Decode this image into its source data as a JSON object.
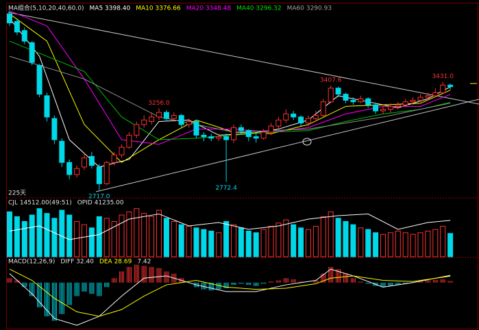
{
  "chart_data": [
    {
      "type": "candlestick",
      "header": [
        {
          "text": "MA组合(5,10,20,40,60,0)",
          "color": "#e0e0e0"
        },
        {
          "text": "MA5 3398.40",
          "color": "#ffffff"
        },
        {
          "text": "MA10 3376.66",
          "color": "#ffff00"
        },
        {
          "text": "MA20 3348.48",
          "color": "#ff00ff"
        },
        {
          "text": "MA40 3296.32",
          "color": "#00e000"
        },
        {
          "text": "MA60 3290.93",
          "color": "#a0a0a0"
        }
      ],
      "span_label": "225天",
      "up_color": "#ff3232",
      "down_color": "#00d8e8",
      "open": [
        3880,
        3830,
        3770,
        3690,
        3540,
        3340,
        3190,
        3040,
        2900,
        2820,
        2870,
        2940,
        2870,
        2760,
        2900,
        2950,
        3000,
        3080,
        3150,
        3170,
        3200,
        3230,
        3190,
        3210,
        3150,
        3170,
        3080,
        3070,
        3060,
        3070,
        3050,
        3130,
        3110,
        3070,
        3060,
        3100,
        3140,
        3180,
        3220,
        3200,
        3160,
        3190,
        3210,
        3300,
        3390,
        3350,
        3310,
        3300,
        3320,
        3280,
        3240,
        3250,
        3270,
        3280,
        3300,
        3310,
        3330,
        3340,
        3360,
        3410
      ],
      "high": [
        3900,
        3850,
        3790,
        3700,
        3550,
        3360,
        3210,
        3060,
        2920,
        2880,
        2960,
        2970,
        2890,
        2910,
        2970,
        3020,
        3100,
        3170,
        3210,
        3230,
        3256,
        3245,
        3230,
        3220,
        3190,
        3180,
        3100,
        3090,
        3090,
        3090,
        3150,
        3150,
        3120,
        3090,
        3120,
        3160,
        3200,
        3250,
        3240,
        3210,
        3210,
        3240,
        3320,
        3407.6,
        3400,
        3360,
        3330,
        3340,
        3330,
        3290,
        3270,
        3290,
        3300,
        3320,
        3330,
        3350,
        3360,
        3390,
        3431,
        3420
      ],
      "low": [
        3800,
        3740,
        3680,
        3540,
        3330,
        3170,
        3020,
        2870,
        2790,
        2800,
        2850,
        2860,
        2717,
        2750,
        2880,
        2930,
        2990,
        3060,
        3130,
        3150,
        3180,
        3170,
        3170,
        3130,
        3130,
        3060,
        3040,
        3040,
        3040,
        2772.4,
        3030,
        3090,
        3040,
        3030,
        3050,
        3080,
        3120,
        3160,
        3180,
        3140,
        3140,
        3170,
        3200,
        3290,
        3330,
        3290,
        3280,
        3290,
        3260,
        3220,
        3220,
        3230,
        3250,
        3270,
        3280,
        3300,
        3310,
        3330,
        3350,
        3380
      ],
      "close": [
        3820,
        3760,
        3700,
        3560,
        3350,
        3200,
        3050,
        2900,
        2820,
        2860,
        2930,
        2880,
        2760,
        2900,
        2950,
        3000,
        3080,
        3150,
        3180,
        3200,
        3230,
        3190,
        3210,
        3150,
        3170,
        3080,
        3070,
        3060,
        3070,
        3050,
        3130,
        3110,
        3070,
        3060,
        3100,
        3140,
        3180,
        3220,
        3200,
        3160,
        3190,
        3210,
        3300,
        3390,
        3350,
        3310,
        3300,
        3320,
        3280,
        3240,
        3250,
        3270,
        3280,
        3300,
        3310,
        3330,
        3340,
        3360,
        3410,
        3400
      ],
      "ylim": [
        2680,
        3890
      ],
      "annotations": [
        {
          "value": 3256,
          "label": "3256.0"
        },
        {
          "value": 2772.4,
          "label": "2772.4"
        },
        {
          "value": 3407.6,
          "label": "3407.6"
        },
        {
          "value": 3431,
          "label": "3431.0"
        },
        {
          "value": 2717,
          "label": "2717.0"
        }
      ],
      "ma": [
        {
          "name": "MA5",
          "color": "#ffffff",
          "x": [
            0,
            4,
            8,
            12,
            16,
            20,
            24,
            28,
            32,
            36,
            40,
            44,
            48,
            52,
            56,
            59
          ],
          "values": [
            3850,
            3600,
            3050,
            2870,
            2920,
            3170,
            3180,
            3080,
            3090,
            3120,
            3180,
            3340,
            3300,
            3260,
            3320,
            3398.4
          ]
        },
        {
          "name": "MA10",
          "color": "#ffff00",
          "x": [
            0,
            5,
            10,
            15,
            20,
            25,
            30,
            35,
            40,
            45,
            50,
            55,
            59
          ],
          "values": [
            3880,
            3700,
            3150,
            2900,
            3050,
            3180,
            3100,
            3090,
            3150,
            3270,
            3280,
            3290,
            3376.66
          ]
        },
        {
          "name": "MA20",
          "color": "#ff00ff",
          "x": [
            0,
            5,
            10,
            15,
            20,
            25,
            30,
            35,
            40,
            45,
            50,
            55,
            59
          ],
          "values": [
            3900,
            3800,
            3450,
            3050,
            3020,
            3120,
            3120,
            3100,
            3130,
            3220,
            3270,
            3270,
            3348.48
          ]
        },
        {
          "name": "MA40",
          "color": "#00c000",
          "x": [
            0,
            10,
            15,
            20,
            25,
            30,
            35,
            40,
            45,
            50,
            55,
            59
          ],
          "values": [
            3700,
            3500,
            3200,
            3050,
            3060,
            3080,
            3100,
            3110,
            3170,
            3220,
            3250,
            3296.32
          ]
        },
        {
          "name": "MA60",
          "color": "#909090",
          "x": [
            0,
            10,
            20,
            30,
            40,
            50,
            59
          ],
          "values": [
            3600,
            3450,
            3200,
            3100,
            3120,
            3200,
            3290.93
          ]
        }
      ]
    },
    {
      "type": "volume",
      "header": [
        {
          "text": "CJL 14512.00(49:51)",
          "color": "#e0e0e0"
        },
        {
          "text": "OPID 41235.00",
          "color": "#e0e0e0"
        }
      ],
      "values": [
        28000,
        25000,
        22000,
        26000,
        30000,
        27000,
        24000,
        29000,
        26000,
        22000,
        20000,
        18000,
        25000,
        24000,
        22000,
        26000,
        28000,
        30000,
        27000,
        25000,
        29000,
        24000,
        22000,
        20000,
        19000,
        18000,
        17000,
        16000,
        15000,
        22000,
        20000,
        18000,
        16000,
        15000,
        17000,
        19000,
        21000,
        23000,
        20000,
        18000,
        17000,
        19000,
        25000,
        28000,
        24000,
        22000,
        20000,
        18000,
        17000,
        15000,
        14000,
        15000,
        16000,
        15000,
        14000,
        15000,
        16000,
        17000,
        19000,
        14512
      ],
      "ylim": [
        0,
        32000
      ],
      "line": {
        "color": "#ffffff",
        "x": [
          0,
          4,
          8,
          12,
          16,
          20,
          24,
          28,
          32,
          36,
          40,
          44,
          48,
          52,
          56,
          59
        ],
        "values": [
          35000,
          38000,
          30000,
          33000,
          42000,
          45000,
          38000,
          40000,
          36000,
          38000,
          42000,
          44000,
          45000,
          36000,
          40000,
          41235
        ]
      },
      "y2lim": [
        20000,
        50000
      ]
    },
    {
      "type": "macd",
      "header": [
        {
          "text": "MACD(12,26,9)",
          "color": "#e0e0e0"
        },
        {
          "text": "DIFF 32.40",
          "color": "#e0e0e0"
        },
        {
          "text": "DEA 28.69",
          "color": "#ffff00"
        },
        {
          "text": "7.42",
          "color": "#e0e0e0"
        }
      ],
      "values": [
        20,
        10,
        -20,
        -60,
        -110,
        -150,
        -170,
        -140,
        -100,
        -60,
        -40,
        -50,
        -60,
        -20,
        20,
        50,
        70,
        80,
        75,
        70,
        65,
        50,
        40,
        20,
        0,
        -20,
        -30,
        -35,
        -30,
        -25,
        -10,
        -5,
        -10,
        -15,
        -5,
        5,
        10,
        20,
        15,
        5,
        0,
        10,
        40,
        70,
        60,
        40,
        20,
        5,
        -5,
        -15,
        -20,
        -15,
        -10,
        -5,
        0,
        5,
        10,
        12,
        15,
        7.42
      ],
      "ylim": [
        -205,
        100
      ],
      "up_color": "#ff3232",
      "down_color": "#00d8e8",
      "lines": [
        {
          "color": "#ffffff",
          "x": [
            0,
            3,
            6,
            9,
            12,
            15,
            18,
            21,
            25,
            29,
            33,
            37,
            41,
            43,
            46,
            50,
            54,
            59
          ],
          "values": [
            40,
            -50,
            -160,
            -190,
            -150,
            -60,
            20,
            30,
            -10,
            -40,
            -40,
            -10,
            10,
            60,
            30,
            -20,
            0,
            32.4
          ]
        },
        {
          "color": "#ffff00",
          "x": [
            0,
            3,
            6,
            9,
            12,
            15,
            18,
            21,
            25,
            29,
            33,
            37,
            41,
            43,
            46,
            50,
            54,
            59
          ],
          "values": [
            60,
            10,
            -70,
            -130,
            -150,
            -120,
            -60,
            -10,
            10,
            -20,
            -30,
            -25,
            -5,
            20,
            30,
            10,
            5,
            28.69
          ]
        }
      ]
    }
  ]
}
